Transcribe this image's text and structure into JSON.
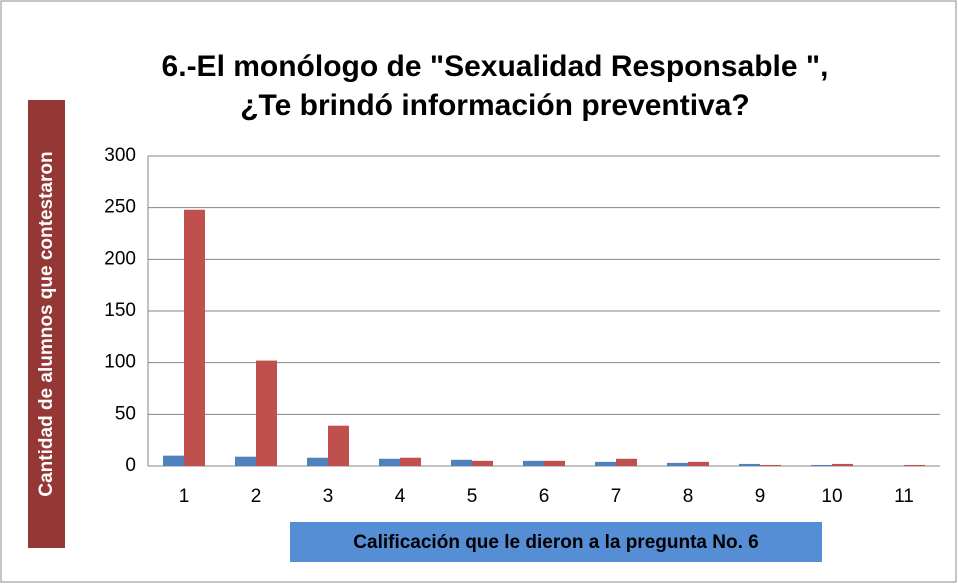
{
  "chart_data": {
    "type": "bar",
    "title": [
      "6.-El monólogo de \"Sexualidad Responsable \",",
      "¿Te brindó información preventiva?"
    ],
    "x_label": "Calificación que le dieron a la pregunta No. 6",
    "y_label": "Cantidad de alumnos que contestaron",
    "categories": [
      "1",
      "2",
      "3",
      "4",
      "5",
      "6",
      "7",
      "8",
      "9",
      "10",
      "11"
    ],
    "series": [
      {
        "color": "#4f81bd",
        "values": [
          10,
          9,
          8,
          7,
          6,
          5,
          4,
          3,
          2,
          1,
          0
        ]
      },
      {
        "color": "#c0504d",
        "values": [
          248,
          102,
          39,
          8,
          5,
          5,
          7,
          4,
          1,
          2,
          1
        ]
      }
    ],
    "ylim": [
      0,
      300
    ],
    "yticks": [
      0,
      50,
      100,
      150,
      200,
      250,
      300
    ],
    "grid": true
  }
}
